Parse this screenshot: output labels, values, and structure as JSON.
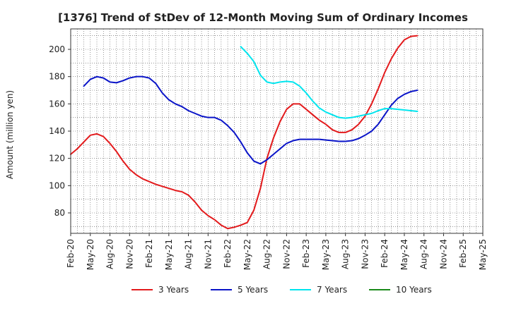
{
  "chart_data": {
    "type": "line",
    "title": "[1376]  Trend of StDev of 12-Month Moving Sum of Ordinary Incomes",
    "xlabel": "",
    "ylabel": "Amount (million yen)",
    "ylim": [
      65,
      215
    ],
    "yticks": [
      80,
      100,
      120,
      140,
      160,
      180,
      200
    ],
    "xlim": [
      0,
      60
    ],
    "xticks": [
      {
        "label": "Feb-20",
        "x": 0
      },
      {
        "label": "May-20",
        "x": 3
      },
      {
        "label": "Aug-20",
        "x": 6
      },
      {
        "label": "Nov-20",
        "x": 9
      },
      {
        "label": "Feb-21",
        "x": 12
      },
      {
        "label": "May-21",
        "x": 15
      },
      {
        "label": "Aug-21",
        "x": 18
      },
      {
        "label": "Nov-21",
        "x": 21
      },
      {
        "label": "Feb-22",
        "x": 24
      },
      {
        "label": "May-22",
        "x": 27
      },
      {
        "label": "Aug-22",
        "x": 30
      },
      {
        "label": "Nov-22",
        "x": 33
      },
      {
        "label": "Feb-23",
        "x": 36
      },
      {
        "label": "May-23",
        "x": 39
      },
      {
        "label": "Aug-23",
        "x": 42
      },
      {
        "label": "Nov-23",
        "x": 45
      },
      {
        "label": "Feb-24",
        "x": 48
      },
      {
        "label": "May-24",
        "x": 51
      },
      {
        "label": "Aug-24",
        "x": 54
      },
      {
        "label": "Nov-24",
        "x": 57
      },
      {
        "label": "Feb-25",
        "x": 60
      }
    ],
    "extra_xtick": {
      "label": "May-25",
      "x": 63
    },
    "grid": true,
    "legend_position": "bottom",
    "series": [
      {
        "name": "3 Years",
        "color": "#e31a1c",
        "x_start": 0,
        "values": [
          123,
          127,
          132,
          137,
          138,
          136,
          131,
          125,
          118,
          112,
          108,
          105,
          103,
          101,
          99.5,
          98,
          96.5,
          95.5,
          93,
          88,
          82,
          78,
          75,
          71,
          68.5,
          69.5,
          71,
          73,
          82,
          98,
          120,
          135,
          147,
          156,
          160,
          160,
          156,
          152,
          148,
          145,
          141,
          139,
          139,
          141,
          145,
          151,
          160,
          171,
          183,
          193,
          201,
          207,
          209.5,
          210
        ]
      },
      {
        "name": "5 Years",
        "color": "#0a14c8",
        "x_start": 2,
        "values": [
          173,
          178,
          180,
          179,
          176,
          175.5,
          177,
          179,
          180,
          180,
          179,
          175,
          168,
          163,
          160,
          158,
          155,
          153,
          151,
          150,
          150,
          148,
          144,
          139,
          132,
          124,
          118,
          116,
          119,
          123,
          127,
          131,
          133,
          134,
          134,
          134,
          134,
          133.5,
          133,
          132.5,
          132.5,
          133,
          134.5,
          137,
          140,
          145,
          152,
          159,
          164,
          167,
          169,
          170
        ]
      },
      {
        "name": "7 Years",
        "color": "#00e5ee",
        "x_start": 26,
        "values": [
          202,
          197,
          191,
          181,
          176,
          175,
          176,
          176.5,
          176,
          173,
          168,
          162,
          157,
          154,
          152,
          150,
          149.5,
          150,
          151,
          152,
          153,
          155,
          156.5,
          156.5,
          156,
          155.5,
          155,
          154.5
        ]
      },
      {
        "name": "10 Years",
        "color": "#1a8a1a",
        "x_start": 0,
        "values": []
      }
    ]
  }
}
